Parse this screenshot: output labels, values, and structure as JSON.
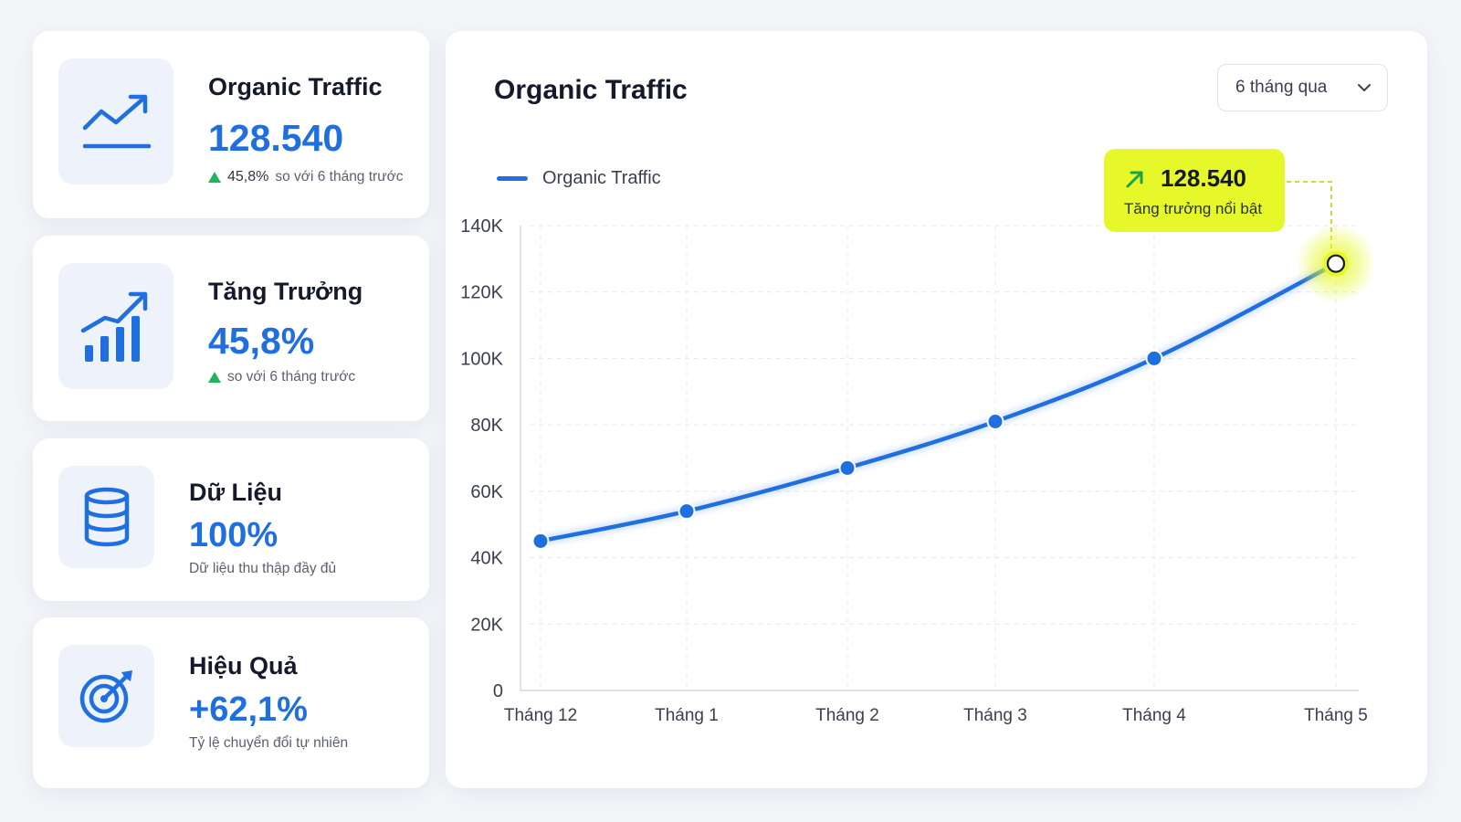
{
  "kpis": [
    {
      "title": "Organic Traffic",
      "value": "128.540",
      "change": "45,8%",
      "note": "so với 6 tháng trước",
      "icon": "trend-line-icon"
    },
    {
      "title": "Tăng Trưởng",
      "value": "45,8%",
      "note": "so với 6 tháng trước",
      "icon": "bar-growth-icon"
    },
    {
      "title": "Dữ Liệu",
      "value": "100%",
      "note": "Dữ liệu thu thập đầy đủ",
      "icon": "database-icon"
    },
    {
      "title": "Hiệu Quả",
      "value": "+62,1%",
      "note": "Tỷ lệ chuyển đổi tự nhiên",
      "icon": "target-icon"
    }
  ],
  "chart": {
    "title": "Organic Traffic",
    "range_select": "6 tháng qua",
    "callout_value": "128.540",
    "callout_label": "Tăng trưởng nổi bật"
  },
  "colors": {
    "accent": "#1f6fe0",
    "highlight": "#e6f82a",
    "up": "#22b35e"
  },
  "chart_data": {
    "type": "line",
    "title": "Organic Traffic",
    "xlabel": "",
    "ylabel": "",
    "categories": [
      "Tháng 12",
      "Tháng 1",
      "Tháng 2",
      "Tháng 3",
      "Tháng 4",
      "Tháng 5"
    ],
    "series": [
      {
        "name": "Organic Traffic",
        "values": [
          45000,
          54000,
          67000,
          81000,
          100000,
          128540
        ]
      }
    ],
    "yticks": [
      "0",
      "20K",
      "40K",
      "60K",
      "80K",
      "100K",
      "120K",
      "140K"
    ],
    "ylim": [
      0,
      140000
    ],
    "grid": true,
    "legend": "top-left",
    "highlight": {
      "category": "Tháng 5",
      "value": 128540
    }
  }
}
